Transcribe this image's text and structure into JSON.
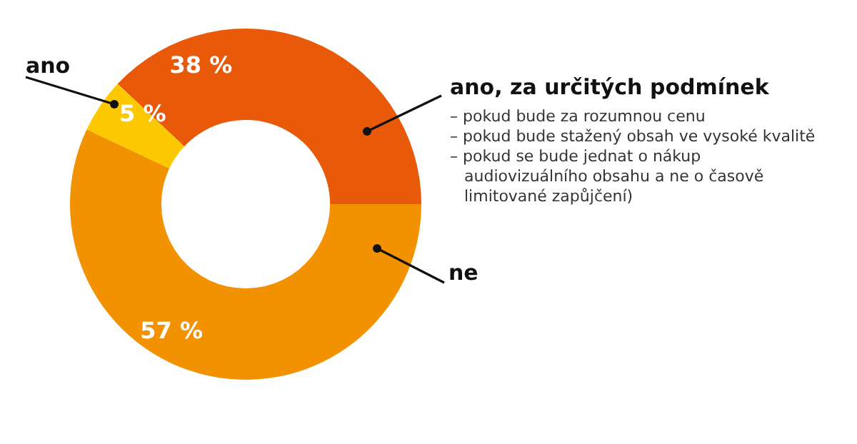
{
  "chart_data": {
    "type": "donut",
    "categories": [
      "ano, za určitých podmínek",
      "ne",
      "ano"
    ],
    "values": [
      38,
      57,
      5
    ],
    "colors": [
      "#e85a0a",
      "#f39200",
      "#fcc800"
    ],
    "value_labels": [
      "38 %",
      "57 %",
      "5 %"
    ],
    "annotations": [
      "– pokud bude za rozumnou cenu",
      "– pokud bude stažený obsah ve vysoké kvalitě",
      "– pokud se bude jednat o nákup audiovizuálního obsahu a ne o časově limitované zapůjčení)"
    ],
    "legend": false
  }
}
